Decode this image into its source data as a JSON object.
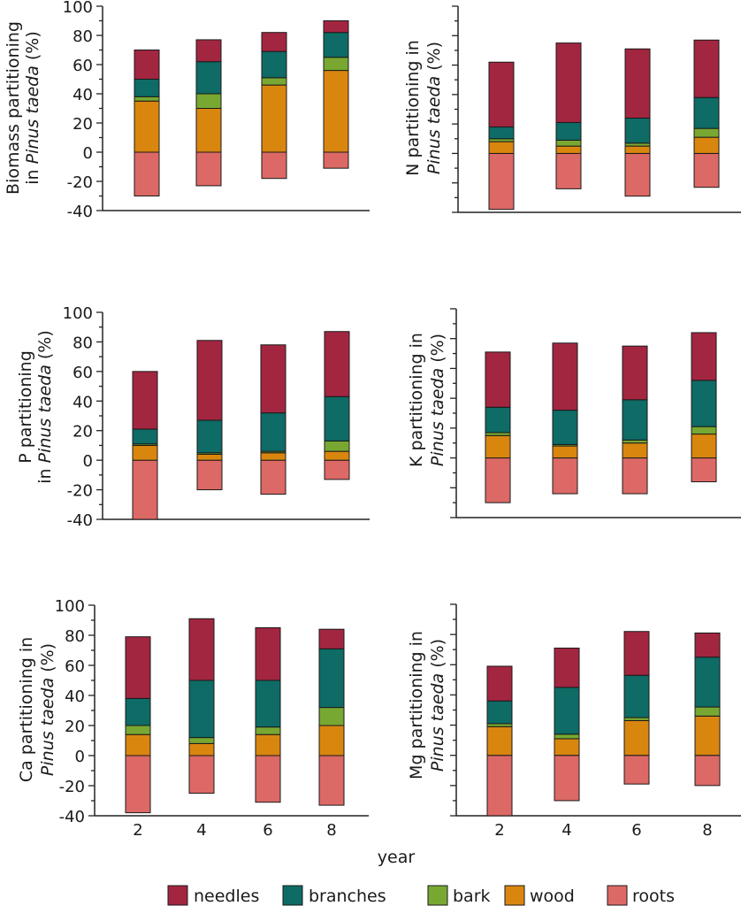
{
  "chart_data": [
    {
      "type": "bar",
      "stacked": true,
      "title": "",
      "ylabel": [
        "Biomass partitioning",
        "in Pinus taeda (%)"
      ],
      "ylim": [
        -40,
        100
      ],
      "yticks": [
        -40,
        -20,
        0,
        20,
        40,
        60,
        80,
        100
      ],
      "show_tick_labels": true,
      "categories": [
        "2",
        "4",
        "6",
        "8"
      ],
      "series": [
        {
          "name": "roots",
          "values": [
            -30,
            -23,
            -18,
            -11
          ]
        },
        {
          "name": "wood",
          "values": [
            35,
            30,
            46,
            56
          ]
        },
        {
          "name": "bark",
          "values": [
            3,
            10,
            5,
            9
          ]
        },
        {
          "name": "branches",
          "values": [
            12,
            22,
            18,
            17
          ]
        },
        {
          "name": "needles",
          "values": [
            20,
            15,
            13,
            8
          ]
        }
      ]
    },
    {
      "type": "bar",
      "stacked": true,
      "title": "",
      "ylabel": [
        "N partitioning in",
        "Pinus taeda (%)"
      ],
      "ylim": [
        -40,
        100
      ],
      "yticks": [],
      "show_tick_labels": false,
      "categories": [
        "2",
        "4",
        "6",
        "8"
      ],
      "series": [
        {
          "name": "roots",
          "values": [
            -38,
            -24,
            -29,
            -23
          ]
        },
        {
          "name": "wood",
          "values": [
            8,
            5,
            5,
            11
          ]
        },
        {
          "name": "bark",
          "values": [
            2,
            4,
            2,
            6
          ]
        },
        {
          "name": "branches",
          "values": [
            8,
            12,
            17,
            21
          ]
        },
        {
          "name": "needles",
          "values": [
            44,
            54,
            47,
            39
          ]
        }
      ]
    },
    {
      "type": "bar",
      "stacked": true,
      "title": "",
      "ylabel": [
        "P partitioning",
        "in Pinus taeda (%)"
      ],
      "ylim": [
        -40,
        100
      ],
      "yticks": [
        -40,
        -20,
        0,
        20,
        40,
        60,
        80,
        100
      ],
      "show_tick_labels": true,
      "categories": [
        "2",
        "4",
        "6",
        "8"
      ],
      "series": [
        {
          "name": "roots",
          "values": [
            -40,
            -20,
            -23,
            -13
          ]
        },
        {
          "name": "wood",
          "values": [
            10,
            4,
            5,
            6
          ]
        },
        {
          "name": "bark",
          "values": [
            1,
            1,
            1,
            7
          ]
        },
        {
          "name": "branches",
          "values": [
            10,
            22,
            26,
            30
          ]
        },
        {
          "name": "needles",
          "values": [
            39,
            54,
            46,
            44
          ]
        }
      ]
    },
    {
      "type": "bar",
      "stacked": true,
      "title": "",
      "ylabel": [
        "K partitioning in",
        "Pinus taeda (%)"
      ],
      "ylim": [
        -40,
        100
      ],
      "yticks": [],
      "show_tick_labels": false,
      "categories": [
        "2",
        "4",
        "6",
        "8"
      ],
      "series": [
        {
          "name": "roots",
          "values": [
            -30,
            -24,
            -24,
            -16
          ]
        },
        {
          "name": "wood",
          "values": [
            15,
            8,
            10,
            16
          ]
        },
        {
          "name": "bark",
          "values": [
            2,
            1,
            2,
            5
          ]
        },
        {
          "name": "branches",
          "values": [
            17,
            23,
            27,
            31
          ]
        },
        {
          "name": "needles",
          "values": [
            37,
            45,
            36,
            32
          ]
        }
      ]
    },
    {
      "type": "bar",
      "stacked": true,
      "title": "",
      "ylabel": [
        "Ca partitioning in",
        "Pinus taeda (%)"
      ],
      "ylim": [
        -40,
        100
      ],
      "yticks": [
        -40,
        -20,
        0,
        20,
        40,
        60,
        80,
        100
      ],
      "show_tick_labels": true,
      "categories": [
        "2",
        "4",
        "6",
        "8"
      ],
      "series": [
        {
          "name": "roots",
          "values": [
            -38,
            -25,
            -31,
            -33
          ]
        },
        {
          "name": "wood",
          "values": [
            14,
            8,
            14,
            20
          ]
        },
        {
          "name": "bark",
          "values": [
            6,
            4,
            5,
            12
          ]
        },
        {
          "name": "branches",
          "values": [
            18,
            38,
            31,
            39
          ]
        },
        {
          "name": "needles",
          "values": [
            41,
            41,
            35,
            13
          ]
        }
      ]
    },
    {
      "type": "bar",
      "stacked": true,
      "title": "",
      "ylabel": [
        "Mg partitioning in",
        "Pinus taeda (%)"
      ],
      "ylim": [
        -40,
        100
      ],
      "yticks": [],
      "show_tick_labels": false,
      "categories": [
        "2",
        "4",
        "6",
        "8"
      ],
      "series": [
        {
          "name": "roots",
          "values": [
            -40,
            -30,
            -19,
            -20
          ]
        },
        {
          "name": "wood",
          "values": [
            19,
            11,
            23,
            26
          ]
        },
        {
          "name": "bark",
          "values": [
            2,
            3,
            2,
            6
          ]
        },
        {
          "name": "branches",
          "values": [
            15,
            31,
            28,
            33
          ]
        },
        {
          "name": "needles",
          "values": [
            23,
            26,
            29,
            16
          ]
        }
      ]
    }
  ],
  "xlabel": "year",
  "legend": {
    "placement": "bottom",
    "items": [
      {
        "name": "needles",
        "color": "#a32641"
      },
      {
        "name": "branches",
        "color": "#0e6b66"
      },
      {
        "name": "bark",
        "color": "#78a832"
      },
      {
        "name": "wood",
        "color": "#d9860f"
      },
      {
        "name": "roots",
        "color": "#dc6965"
      }
    ]
  }
}
